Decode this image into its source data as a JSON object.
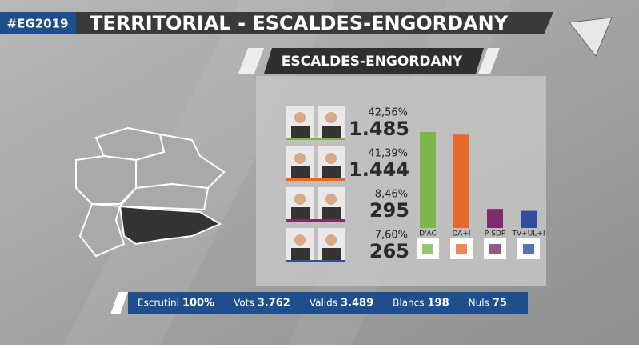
{
  "header": {
    "tag": "#EG2019",
    "title": "TERRITORIAL - ESCALDES-ENGORDANY",
    "subtitle": "ESCALDES-ENGORDANY"
  },
  "chart_data": {
    "type": "bar",
    "categories": [
      "D'AC",
      "DA+I",
      "P-SDP",
      "TV+UL+I"
    ],
    "values": [
      42.56,
      41.39,
      8.46,
      7.6
    ],
    "value_labels": [
      "42,56%",
      "41,39%",
      "8,46%",
      "7,60%"
    ],
    "votes": [
      1485,
      1444,
      295,
      265
    ],
    "vote_labels": [
      "1.485",
      "1.444",
      "295",
      "265"
    ],
    "colors": [
      "#7ab648",
      "#e8672a",
      "#7b2d6e",
      "#2f4f9e"
    ]
  },
  "footer": [
    {
      "label": "Escrutini",
      "value": "100%"
    },
    {
      "label": "Vots",
      "value": "3.762"
    },
    {
      "label": "Vàlids",
      "value": "3.489"
    },
    {
      "label": "Blancs",
      "value": "198"
    },
    {
      "label": "Nuls",
      "value": "75"
    }
  ]
}
